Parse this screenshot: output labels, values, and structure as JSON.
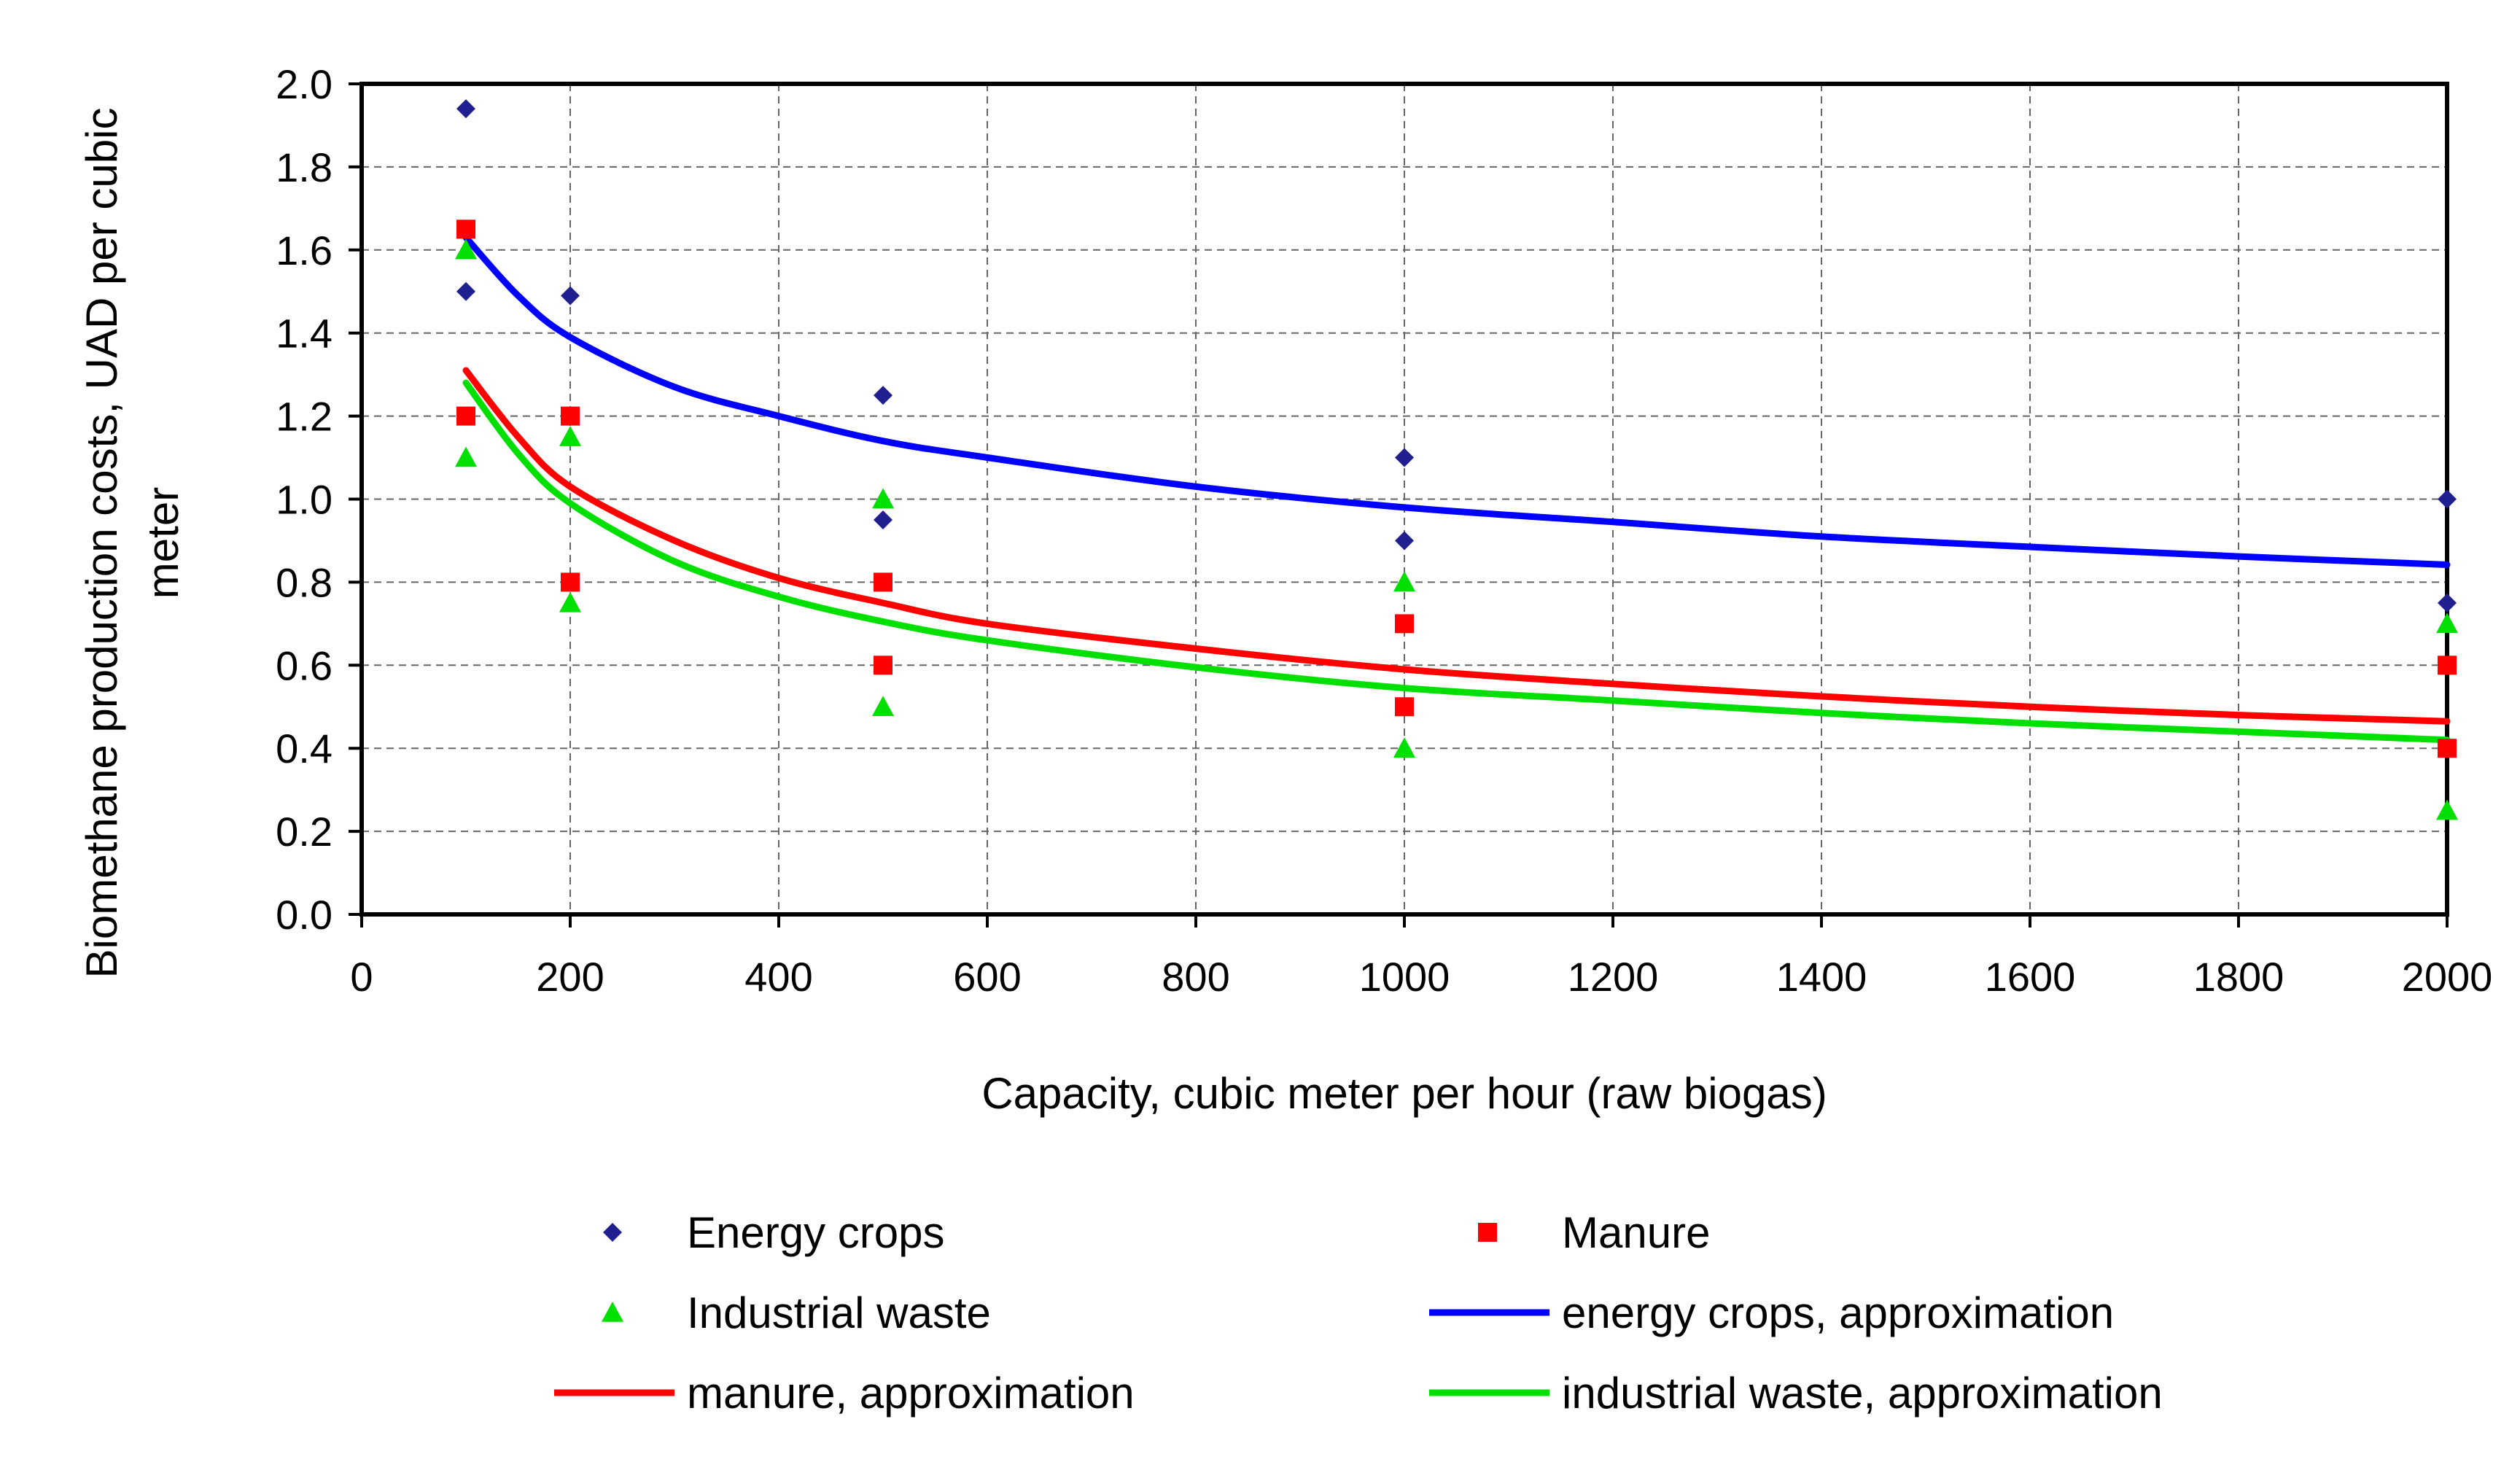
{
  "chart_data": {
    "type": "scatter",
    "title": "",
    "xlabel": "Capacity, cubic meter per hour (raw biogas)",
    "ylabel": "Biomethane production costs, UAD per cubic meter",
    "ylabel_lines": [
      "Biomethane production costs, UAD per cubic",
      "meter"
    ],
    "xlim": [
      0,
      2000
    ],
    "ylim": [
      0,
      2.0
    ],
    "x_ticks": [
      0,
      200,
      400,
      600,
      800,
      1000,
      1200,
      1400,
      1600,
      1800,
      2000
    ],
    "x_tick_labels": [
      "0",
      "200",
      "400",
      "600",
      "800",
      "1000",
      "1200",
      "1400",
      "1600",
      "1800",
      "2000"
    ],
    "y_ticks": [
      0,
      0.2,
      0.4,
      0.6,
      0.8,
      1.0,
      1.2,
      1.4,
      1.6,
      1.8,
      2.0
    ],
    "y_tick_labels": [
      "0.0",
      "0.2",
      "0.4",
      "0.6",
      "0.8",
      "1.0",
      "1.2",
      "1.4",
      "1.6",
      "1.8",
      "2.0"
    ],
    "grid": true,
    "legend_position": "bottom",
    "series": [
      {
        "name": "Energy crops",
        "kind": "points",
        "marker": "diamond",
        "color": "#1F1F8F",
        "points": [
          [
            100,
            1.94
          ],
          [
            100,
            1.5
          ],
          [
            200,
            1.49
          ],
          [
            500,
            1.25
          ],
          [
            500,
            0.95
          ],
          [
            1000,
            1.1
          ],
          [
            1000,
            0.9
          ],
          [
            2000,
            1.0
          ],
          [
            2000,
            0.75
          ]
        ]
      },
      {
        "name": "Manure",
        "kind": "points",
        "marker": "square",
        "color": "#FF0000",
        "points": [
          [
            100,
            1.65
          ],
          [
            100,
            1.2
          ],
          [
            200,
            1.2
          ],
          [
            200,
            0.8
          ],
          [
            500,
            0.8
          ],
          [
            500,
            0.6
          ],
          [
            1000,
            0.7
          ],
          [
            1000,
            0.5
          ],
          [
            2000,
            0.6
          ],
          [
            2000,
            0.4
          ]
        ]
      },
      {
        "name": "Industrial waste",
        "kind": "points",
        "marker": "triangle",
        "color": "#00E000",
        "points": [
          [
            100,
            1.6
          ],
          [
            100,
            1.1
          ],
          [
            200,
            1.15
          ],
          [
            200,
            0.75
          ],
          [
            500,
            1.0
          ],
          [
            500,
            0.5
          ],
          [
            1000,
            0.8
          ],
          [
            1000,
            0.4
          ],
          [
            2000,
            0.7
          ],
          [
            2000,
            0.25
          ]
        ]
      },
      {
        "name": "energy crops, approximation",
        "kind": "line",
        "color": "#0000FF",
        "points": [
          [
            100,
            1.63
          ],
          [
            150,
            1.49
          ],
          [
            200,
            1.39
          ],
          [
            300,
            1.27
          ],
          [
            400,
            1.2
          ],
          [
            500,
            1.14
          ],
          [
            600,
            1.1
          ],
          [
            800,
            1.03
          ],
          [
            1000,
            0.98
          ],
          [
            1200,
            0.945
          ],
          [
            1400,
            0.91
          ],
          [
            1600,
            0.885
          ],
          [
            1800,
            0.862
          ],
          [
            2000,
            0.842
          ]
        ]
      },
      {
        "name": "manure, approximation",
        "kind": "line",
        "color": "#FF0000",
        "points": [
          [
            100,
            1.31
          ],
          [
            150,
            1.15
          ],
          [
            200,
            1.03
          ],
          [
            300,
            0.9
          ],
          [
            400,
            0.81
          ],
          [
            500,
            0.75
          ],
          [
            600,
            0.7
          ],
          [
            800,
            0.64
          ],
          [
            1000,
            0.59
          ],
          [
            1200,
            0.555
          ],
          [
            1400,
            0.525
          ],
          [
            1600,
            0.5
          ],
          [
            1800,
            0.48
          ],
          [
            2000,
            0.465
          ]
        ]
      },
      {
        "name": "industrial waste, approximation",
        "kind": "line",
        "color": "#00E000",
        "points": [
          [
            100,
            1.28
          ],
          [
            150,
            1.11
          ],
          [
            200,
            0.99
          ],
          [
            300,
            0.85
          ],
          [
            400,
            0.765
          ],
          [
            500,
            0.705
          ],
          [
            600,
            0.66
          ],
          [
            800,
            0.595
          ],
          [
            1000,
            0.545
          ],
          [
            1200,
            0.515
          ],
          [
            1400,
            0.485
          ],
          [
            1600,
            0.46
          ],
          [
            1800,
            0.44
          ],
          [
            2000,
            0.42
          ]
        ]
      }
    ]
  }
}
